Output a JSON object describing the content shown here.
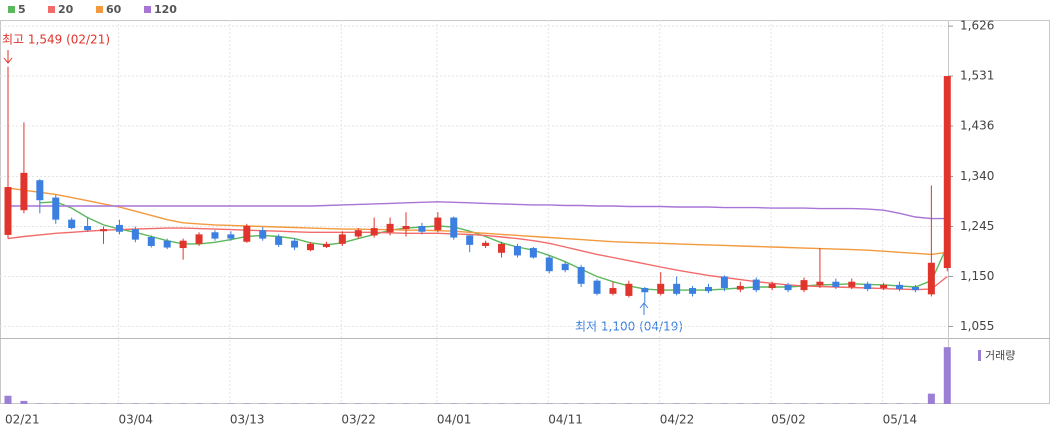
{
  "chart_data": {
    "type": "candlestick",
    "legend": [
      "5",
      "20",
      "60",
      "120"
    ],
    "categories": [
      "02/21",
      null,
      null,
      null,
      null,
      null,
      null,
      "03/04",
      null,
      null,
      null,
      null,
      null,
      null,
      "03/13",
      null,
      null,
      null,
      null,
      null,
      null,
      "03/22",
      null,
      null,
      null,
      null,
      null,
      "04/01",
      null,
      null,
      null,
      null,
      null,
      null,
      "04/11",
      null,
      null,
      null,
      null,
      null,
      null,
      "04/22",
      null,
      null,
      null,
      null,
      null,
      null,
      "05/02",
      null,
      null,
      null,
      null,
      null,
      null,
      "05/14",
      null,
      null,
      null,
      null
    ],
    "open": [
      1229,
      1276,
      1333,
      1300,
      1258,
      1246,
      1236,
      1248,
      1240,
      1225,
      1218,
      1204,
      1212,
      1234,
      1230,
      1216,
      1238,
      1226,
      1218,
      1200,
      1206,
      1212,
      1226,
      1228,
      1234,
      1240,
      1246,
      1238,
      1262,
      1228,
      1208,
      1195,
      1208,
      1204,
      1186,
      1174,
      1168,
      1142,
      1117,
      1113,
      1128,
      1117,
      1136,
      1128,
      1130,
      1150,
      1125,
      1144,
      1128,
      1134,
      1124,
      1133,
      1140,
      1130,
      1136,
      1128,
      1134,
      1130,
      1116,
      1166
    ],
    "high": [
      1549,
      1443,
      1335,
      1305,
      1262,
      1262,
      1245,
      1258,
      1245,
      1228,
      1222,
      1222,
      1234,
      1238,
      1236,
      1250,
      1244,
      1230,
      1222,
      1215,
      1216,
      1236,
      1242,
      1262,
      1262,
      1272,
      1252,
      1272,
      1264,
      1230,
      1218,
      1216,
      1212,
      1206,
      1190,
      1178,
      1172,
      1145,
      1140,
      1142,
      1130,
      1158,
      1150,
      1132,
      1136,
      1152,
      1140,
      1148,
      1140,
      1138,
      1148,
      1204,
      1146,
      1146,
      1140,
      1138,
      1140,
      1134,
      1323,
      1531
    ],
    "low": [
      1222,
      1270,
      1270,
      1250,
      1240,
      1235,
      1212,
      1230,
      1215,
      1205,
      1202,
      1182,
      1208,
      1218,
      1218,
      1214,
      1218,
      1206,
      1200,
      1198,
      1204,
      1208,
      1222,
      1224,
      1228,
      1226,
      1230,
      1234,
      1220,
      1196,
      1204,
      1186,
      1186,
      1184,
      1156,
      1158,
      1130,
      1114,
      1114,
      1110,
      1100,
      1114,
      1114,
      1112,
      1118,
      1122,
      1120,
      1120,
      1124,
      1120,
      1120,
      1128,
      1126,
      1126,
      1122,
      1124,
      1122,
      1120,
      1112,
      1160
    ],
    "close": [
      1320,
      1347,
      1295,
      1258,
      1242,
      1238,
      1240,
      1235,
      1220,
      1208,
      1205,
      1218,
      1230,
      1222,
      1222,
      1246,
      1222,
      1210,
      1205,
      1212,
      1212,
      1230,
      1238,
      1242,
      1250,
      1246,
      1235,
      1262,
      1224,
      1210,
      1214,
      1212,
      1190,
      1186,
      1160,
      1162,
      1136,
      1117,
      1128,
      1136,
      1120,
      1136,
      1117,
      1117,
      1122,
      1128,
      1132,
      1124,
      1136,
      1124,
      1143,
      1140,
      1130,
      1140,
      1126,
      1134,
      1126,
      1124,
      1176,
      1531
    ],
    "up_color": "#e0342c",
    "down_color": "#3b7fe0",
    "moving_averages": [
      {
        "name": "5",
        "color": "#5cb85c",
        "values": [
          null,
          null,
          1290,
          1292,
          1280,
          1262,
          1248,
          1240,
          1234,
          1226,
          1218,
          1212,
          1212,
          1215,
          1220,
          1226,
          1228,
          1226,
          1222,
          1214,
          1210,
          1214,
          1222,
          1230,
          1238,
          1242,
          1244,
          1246,
          1244,
          1236,
          1226,
          1214,
          1206,
          1200,
          1190,
          1178,
          1164,
          1150,
          1140,
          1132,
          1126,
          1124,
          1124,
          1124,
          1124,
          1126,
          1128,
          1130,
          1130,
          1130,
          1132,
          1134,
          1135,
          1136,
          1135,
          1134,
          1132,
          1130,
          1142,
          1208
        ]
      },
      {
        "name": "20",
        "color": "#f26b6b",
        "values": [
          1222,
          1226,
          1229,
          1232,
          1234,
          1236,
          1238,
          1239,
          1240,
          1241,
          1242,
          1242,
          1241,
          1240,
          1239,
          1238,
          1237,
          1236,
          1235,
          1234,
          1234,
          1234,
          1234,
          1234,
          1233,
          1232,
          1232,
          1232,
          1231,
          1230,
          1228,
          1225,
          1222,
          1218,
          1213,
          1206,
          1199,
          1192,
          1186,
          1180,
          1174,
          1168,
          1162,
          1157,
          1152,
          1148,
          1144,
          1140,
          1137,
          1134,
          1132,
          1131,
          1130,
          1129,
          1128,
          1127,
          1126,
          1125,
          1126,
          1150
        ]
      },
      {
        "name": "60",
        "color": "#f39a3e",
        "values": [
          1318,
          1314,
          1310,
          1306,
          1300,
          1294,
          1288,
          1282,
          1274,
          1266,
          1258,
          1252,
          1250,
          1248,
          1247,
          1246,
          1245,
          1244,
          1243,
          1242,
          1241,
          1240,
          1240,
          1239,
          1239,
          1238,
          1238,
          1237,
          1236,
          1234,
          1232,
          1230,
          1228,
          1226,
          1224,
          1222,
          1220,
          1218,
          1216,
          1215,
          1214,
          1213,
          1212,
          1211,
          1210,
          1209,
          1208,
          1207,
          1206,
          1205,
          1204,
          1203,
          1202,
          1201,
          1200,
          1198,
          1196,
          1194,
          1192,
          1196
        ]
      },
      {
        "name": "120",
        "color": "#a874d6",
        "values": [
          1284,
          1284,
          1284,
          1284,
          1284,
          1284,
          1284,
          1284,
          1284,
          1284,
          1284,
          1284,
          1284,
          1284,
          1284,
          1284,
          1284,
          1284,
          1284,
          1284,
          1285,
          1286,
          1287,
          1288,
          1289,
          1290,
          1291,
          1292,
          1291,
          1290,
          1289,
          1288,
          1287,
          1286,
          1286,
          1285,
          1285,
          1284,
          1284,
          1283,
          1283,
          1283,
          1282,
          1282,
          1282,
          1281,
          1281,
          1281,
          1280,
          1280,
          1280,
          1279,
          1279,
          1279,
          1278,
          1276,
          1270,
          1263,
          1260,
          1260
        ]
      }
    ],
    "volume": {
      "name": "거래량",
      "color": "#9b7fd4",
      "ylim": [
        0,
        60
      ],
      "values": [
        8,
        3,
        0.4,
        0.4,
        0.4,
        0.4,
        0.4,
        0.4,
        0.4,
        0.4,
        0.4,
        0.4,
        0.4,
        0.4,
        0.4,
        0.4,
        0.4,
        0.4,
        0.4,
        0.4,
        0.4,
        0.4,
        0.4,
        0.4,
        0.4,
        0.4,
        0.4,
        0.4,
        0.4,
        0.4,
        0.4,
        0.4,
        0.4,
        0.4,
        0.4,
        0.4,
        0.4,
        0.4,
        0.4,
        0.4,
        0.4,
        0.4,
        0.4,
        0.4,
        0.4,
        0.4,
        0.4,
        0.4,
        0.4,
        0.4,
        0.4,
        0.4,
        0.4,
        0.4,
        0.4,
        0.4,
        0.4,
        0.4,
        10,
        55
      ]
    },
    "ylim": [
      1033,
      1649
    ],
    "yticks": [
      {
        "value": 1626,
        "label": "1,626"
      },
      {
        "value": 1531,
        "label": "1,531"
      },
      {
        "value": 1436,
        "label": "1,436"
      },
      {
        "value": 1340,
        "label": "1,340"
      },
      {
        "value": 1245,
        "label": "1,245"
      },
      {
        "value": 1150,
        "label": "1,150"
      },
      {
        "value": 1055,
        "label": "1,055"
      }
    ],
    "grid": true,
    "annotations": [
      {
        "text": "최고 1,549 (02/21)",
        "color": "#e0342c"
      },
      {
        "text": "최저 1,100 (04/19)",
        "color": "#3b7fe0"
      }
    ]
  }
}
